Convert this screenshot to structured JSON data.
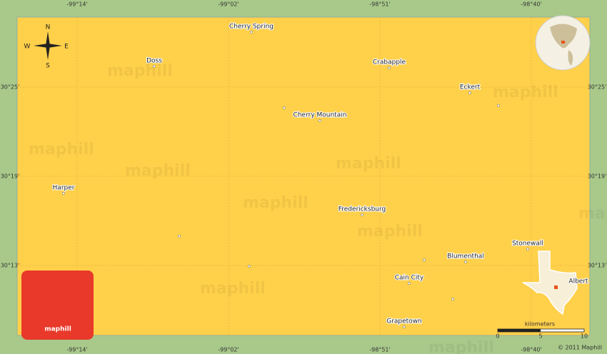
{
  "coordinates": {
    "top": [
      "-99°14'",
      "-99°02'",
      "-98°51'",
      "-98°40'"
    ],
    "bottom": [
      "-99°14'",
      "-99°02'",
      "-98°51'",
      "-98°40'"
    ],
    "left": [
      "30°25'",
      "30°19'",
      "30°13'"
    ],
    "right": [
      "30°25'",
      "30°19'",
      "30°13'"
    ]
  },
  "compass": {
    "n": "N",
    "s": "S",
    "e": "E",
    "w": "W"
  },
  "places": [
    {
      "name": "Cherry Spring"
    },
    {
      "name": "Doss"
    },
    {
      "name": "Crabapple"
    },
    {
      "name": "Eckert"
    },
    {
      "name": "Cherry Mountain"
    },
    {
      "name": "Harper"
    },
    {
      "name": "Fredericksburg"
    },
    {
      "name": "Stonewall"
    },
    {
      "name": "Blumenthal"
    },
    {
      "name": "Cain City"
    },
    {
      "name": "Grapetown"
    },
    {
      "name": "Albert"
    }
  ],
  "scale": {
    "unit": "kilometers",
    "ticks": [
      "0",
      "5",
      "10"
    ]
  },
  "copyright": "© 2011 Maphill",
  "logo": "maphill",
  "watermark": "maphill"
}
